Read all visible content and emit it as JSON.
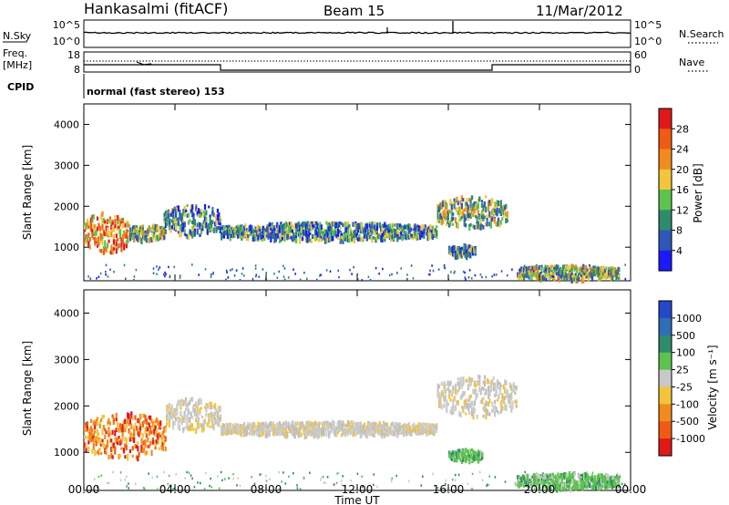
{
  "header": {
    "station": "Hankasalmi (fitACF)",
    "beam": "Beam 15",
    "date": "11/Mar/2012"
  },
  "top_panels": {
    "nsky_label": "N.Sky",
    "nsearch_label": "N.Search",
    "nsky_ticks": [
      "10^5",
      "10^0"
    ],
    "nsearch_ticks": [
      "10^5",
      "10^0"
    ],
    "freq_label_1": "Freq.",
    "freq_label_2": "[MHz]",
    "freq_ticks": [
      "18",
      "8"
    ],
    "nave_label": "Nave",
    "nave_ticks": [
      "60",
      "0"
    ],
    "cpid_label": "CPID",
    "cpid_text": "normal (fast stereo) 153"
  },
  "chart_data": [
    {
      "type": "heatmap",
      "title": "",
      "xlabel": "Time UT",
      "ylabel": "Slant Range [km]",
      "x_tick_labels": [
        "00:00",
        "04:00",
        "08:00",
        "12:00",
        "16:00",
        "20:00",
        "00:00"
      ],
      "x_range_hours": [
        0,
        24
      ],
      "ylim": [
        180,
        4500
      ],
      "y_tick_labels": [
        "1000",
        "2000",
        "3000",
        "4000"
      ],
      "y_ticks": [
        1000,
        2000,
        3000,
        4000
      ],
      "colorbar_label": "Power [dB]",
      "colorbar_ticks": [
        "4",
        "8",
        "12",
        "16",
        "20",
        "24",
        "28"
      ],
      "colorbar_colors": [
        "#1a1aff",
        "#2f57b8",
        "#2e8b6b",
        "#5ec24e",
        "#f2c53a",
        "#f28a1e",
        "#f05a14",
        "#e01818"
      ],
      "bands": [
        {
          "t_start": 0.0,
          "t_end": 2.0,
          "r_low": 900,
          "r_high": 1900,
          "level": "high"
        },
        {
          "t_start": 2.0,
          "t_end": 3.6,
          "r_low": 1200,
          "r_high": 1600,
          "level": "mid"
        },
        {
          "t_start": 3.5,
          "t_end": 6.0,
          "r_low": 1300,
          "r_high": 2100,
          "level": "low"
        },
        {
          "t_start": 6.0,
          "t_end": 15.5,
          "r_low": 1200,
          "r_high": 1650,
          "level": "low"
        },
        {
          "t_start": 15.5,
          "t_end": 18.6,
          "r_low": 1500,
          "r_high": 2300,
          "level": "mid"
        },
        {
          "t_start": 16.0,
          "t_end": 17.2,
          "r_low": 820,
          "r_high": 1100,
          "level": "low"
        },
        {
          "t_start": 19.0,
          "t_end": 23.5,
          "r_low": 250,
          "r_high": 600,
          "level": "mid"
        }
      ]
    },
    {
      "type": "heatmap",
      "title": "",
      "xlabel": "Time UT",
      "ylabel": "Slant Range [km]",
      "x_tick_labels": [
        "00:00",
        "04:00",
        "08:00",
        "12:00",
        "16:00",
        "20:00",
        "00:00"
      ],
      "x_range_hours": [
        0,
        24
      ],
      "ylim": [
        180,
        4500
      ],
      "y_tick_labels": [
        "1000",
        "2000",
        "3000",
        "4000"
      ],
      "y_ticks": [
        1000,
        2000,
        3000,
        4000
      ],
      "colorbar_label": "Velocity [m s⁻¹]",
      "colorbar_ticks": [
        "1000",
        "500",
        "100",
        "25",
        "-25",
        "-100",
        "-500",
        "-1000"
      ],
      "colorbar_colors": [
        "#2548c8",
        "#2f6db5",
        "#2e8b6b",
        "#5ec24e",
        "#c8c8c8",
        "#f2c53a",
        "#f28a1e",
        "#f05a14",
        "#e01818"
      ],
      "bands": [
        {
          "t_start": 0.0,
          "t_end": 3.6,
          "r_low": 900,
          "r_high": 1900,
          "level": "neg"
        },
        {
          "t_start": 3.6,
          "t_end": 6.0,
          "r_low": 1500,
          "r_high": 2200,
          "level": "zero"
        },
        {
          "t_start": 6.0,
          "t_end": 15.5,
          "r_low": 1400,
          "r_high": 1700,
          "level": "zero"
        },
        {
          "t_start": 15.5,
          "t_end": 19.0,
          "r_low": 1800,
          "r_high": 2700,
          "level": "zero"
        },
        {
          "t_start": 16.0,
          "t_end": 17.5,
          "r_low": 850,
          "r_high": 1100,
          "level": "pos"
        },
        {
          "t_start": 19.0,
          "t_end": 23.5,
          "r_low": 250,
          "r_high": 600,
          "level": "pos"
        }
      ]
    }
  ]
}
